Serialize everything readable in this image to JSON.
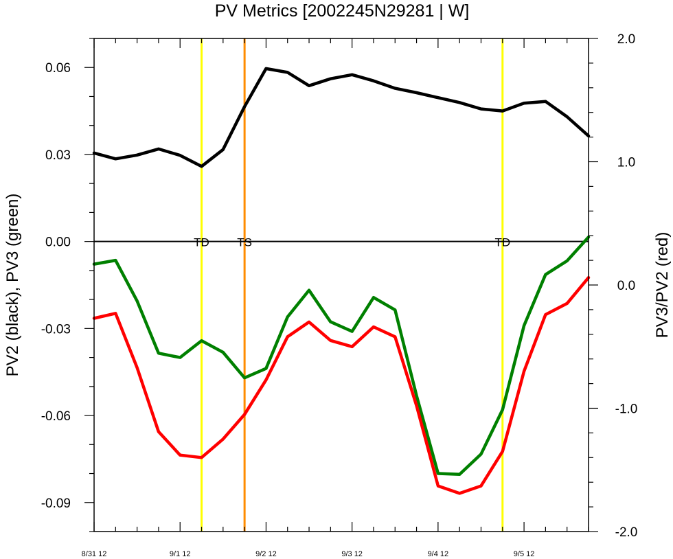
{
  "chart_data": {
    "type": "line",
    "title": "PV Metrics [2002245N29281 | W]",
    "ylabel_left": "PV2 (black), PV3 (green)",
    "ylabel_right": "PV3/PV2 (red)",
    "x_tick_labels": [
      "8/31 12",
      "9/1 12",
      "9/2 12",
      "9/3 12",
      "9/4 12",
      "9/5 12"
    ],
    "x_start_index": 0,
    "x_end_index": 23,
    "x_tick_indices": [
      0,
      4,
      8,
      12,
      16,
      20
    ],
    "ylim_left": [
      -0.1,
      0.07
    ],
    "ylim_right": [
      -2.0,
      2.0
    ],
    "yticks_left": [
      -0.09,
      -0.06,
      -0.03,
      0.0,
      0.03,
      0.06
    ],
    "ytick_labels_left": [
      "-0.09",
      "-0.06",
      "-0.03",
      "0.00",
      "0.03",
      "0.06"
    ],
    "yticks_right": [
      -2.0,
      -1.0,
      0.0,
      1.0,
      2.0
    ],
    "ytick_labels_right": [
      "-2.0",
      "-1.0",
      "0.0",
      "1.0",
      "2.0"
    ],
    "series": [
      {
        "name": "PV2",
        "axis": "left",
        "color": "#000000",
        "x": [
          0,
          1,
          2,
          3,
          4,
          5,
          6,
          7,
          8,
          9,
          10,
          11,
          12,
          13,
          14,
          15,
          16,
          17,
          18,
          19,
          20,
          21,
          22,
          23
        ],
        "values": [
          0.0305,
          0.0285,
          0.0298,
          0.0319,
          0.0297,
          0.0259,
          0.0317,
          0.0465,
          0.0596,
          0.0583,
          0.0537,
          0.0561,
          0.0575,
          0.0554,
          0.0528,
          0.0513,
          0.0496,
          0.0479,
          0.0457,
          0.045,
          0.0477,
          0.0483,
          0.043,
          0.0364
        ]
      },
      {
        "name": "PV3",
        "axis": "left",
        "color": "#008000",
        "x": [
          0,
          1,
          2,
          3,
          4,
          5,
          6,
          7,
          8,
          9,
          10,
          11,
          12,
          13,
          14,
          15,
          16,
          17,
          18,
          19,
          20,
          21,
          22,
          23
        ],
        "values": [
          -0.0078,
          -0.0065,
          -0.0205,
          -0.0385,
          -0.04,
          -0.0342,
          -0.0382,
          -0.047,
          -0.0438,
          -0.026,
          -0.0168,
          -0.0277,
          -0.031,
          -0.0193,
          -0.0236,
          -0.0532,
          -0.08,
          -0.0803,
          -0.0733,
          -0.058,
          -0.029,
          -0.0114,
          -0.0067,
          0.0015
        ]
      },
      {
        "name": "PV3/PV2",
        "axis": "right",
        "color": "#ff0000",
        "x": [
          0,
          1,
          2,
          3,
          4,
          5,
          6,
          7,
          8,
          9,
          10,
          11,
          12,
          13,
          14,
          15,
          16,
          17,
          18,
          19,
          20,
          21,
          22,
          23
        ],
        "values": [
          -0.27,
          -0.23,
          -0.67,
          -1.19,
          -1.38,
          -1.4,
          -1.25,
          -1.05,
          -0.77,
          -0.42,
          -0.3,
          -0.45,
          -0.5,
          -0.34,
          -0.42,
          -0.98,
          -1.63,
          -1.69,
          -1.63,
          -1.35,
          -0.7,
          -0.24,
          -0.15,
          0.06
        ]
      }
    ],
    "vertical_markers": [
      {
        "label": "TD",
        "x": 5,
        "color": "#ffff00"
      },
      {
        "label": "TS",
        "x": 7,
        "color": "#ff8c00"
      },
      {
        "label": "TD",
        "x": 19,
        "color": "#ffff00"
      }
    ],
    "zero_line": true,
    "grid": false,
    "legend": "none"
  }
}
